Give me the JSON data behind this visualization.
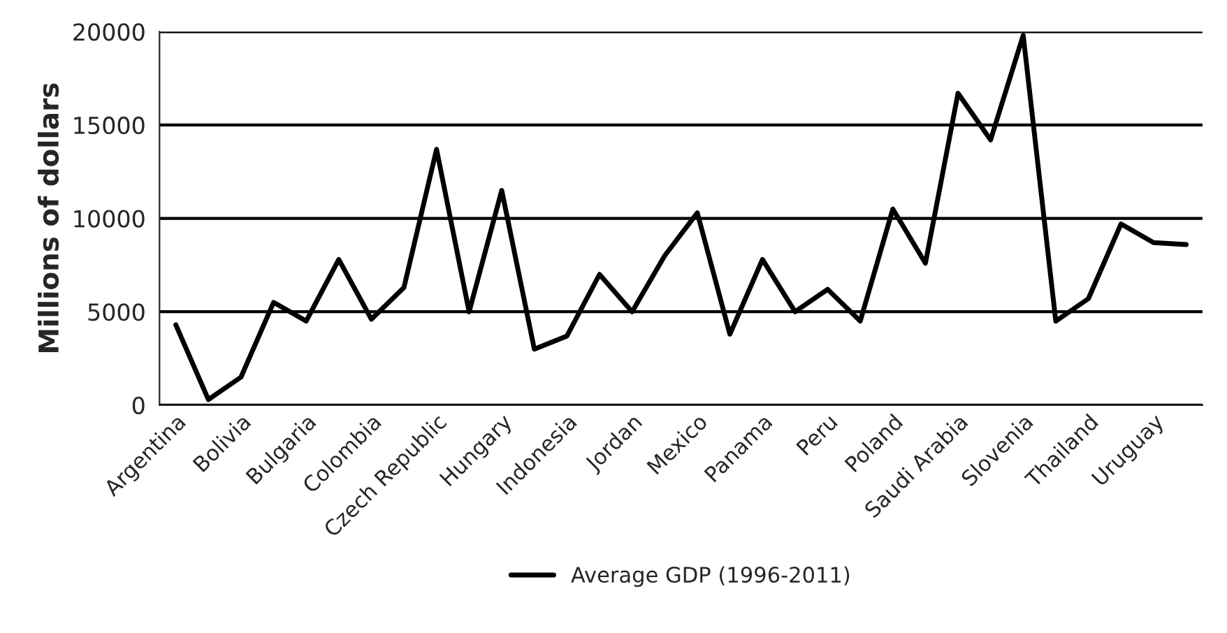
{
  "chart_data": {
    "type": "line",
    "ylabel": "Millions of dollars",
    "categories": [
      "Argentina",
      null,
      "Bolivia",
      null,
      "Bulgaria",
      null,
      "Colombia",
      null,
      "Czech Republic",
      null,
      "Hungary",
      null,
      "Indonesia",
      null,
      "Jordan",
      null,
      "Mexico",
      null,
      "Panama",
      null,
      "Peru",
      null,
      "Poland",
      null,
      "Saudi Arabia",
      null,
      "Slovenia",
      null,
      "Thailand",
      null,
      "Uruguay",
      null
    ],
    "series": [
      {
        "name": "Average GDP (1996-2011)",
        "color": "#000000",
        "values": [
          4300,
          300,
          1500,
          5500,
          4500,
          7800,
          4600,
          6300,
          13700,
          5000,
          11500,
          3000,
          3700,
          7000,
          5000,
          8000,
          10300,
          3800,
          7800,
          5000,
          6200,
          4500,
          10500,
          7600,
          16700,
          14200,
          19800,
          4500,
          5700,
          9700,
          8700,
          8600
        ]
      }
    ],
    "ylim": [
      0,
      20000
    ],
    "yticks": [
      0,
      5000,
      10000,
      15000,
      20000
    ],
    "grid": "y",
    "legend": "bottom",
    "marker": "none",
    "line_style": "solid"
  }
}
